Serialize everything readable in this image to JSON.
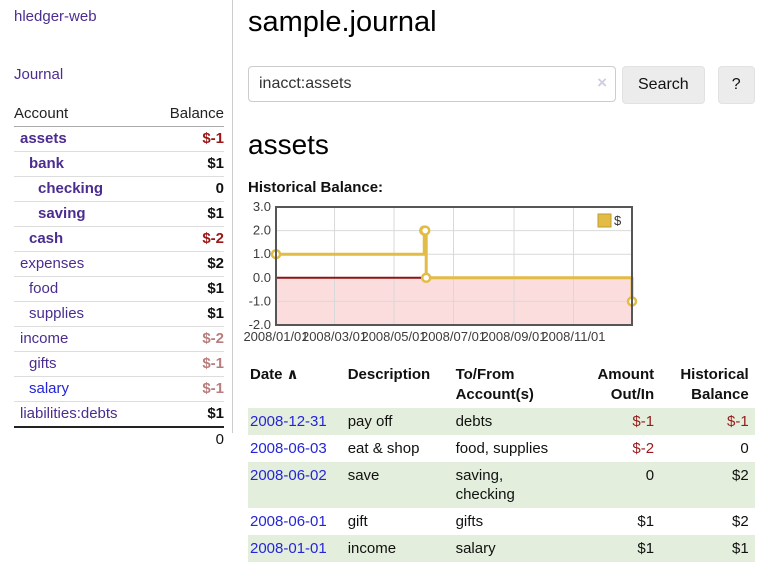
{
  "app": {
    "title": "hledger-web",
    "nav_journal": "Journal"
  },
  "sidebar": {
    "accounts": {
      "headers": [
        "Account",
        "Balance"
      ],
      "rows": [
        {
          "name": "assets",
          "indent": 1,
          "bold": true,
          "balance": "$-1",
          "tone": "neg-strong"
        },
        {
          "name": "bank",
          "indent": 2,
          "bold": true,
          "balance": "$1",
          "tone": "pos"
        },
        {
          "name": "checking",
          "indent": 3,
          "bold": true,
          "balance": "0",
          "tone": "pos"
        },
        {
          "name": "saving",
          "indent": 3,
          "bold": true,
          "balance": "$1",
          "tone": "pos"
        },
        {
          "name": "cash",
          "indent": 2,
          "bold": true,
          "balance": "$-2",
          "tone": "neg-strong"
        },
        {
          "name": "expenses",
          "indent": 1,
          "bold": false,
          "balance": "$2",
          "tone": "pos"
        },
        {
          "name": "food",
          "indent": 2,
          "bold": false,
          "balance": "$1",
          "tone": "pos"
        },
        {
          "name": "supplies",
          "indent": 2,
          "bold": false,
          "balance": "$1",
          "tone": "pos"
        },
        {
          "name": "income",
          "indent": 1,
          "bold": false,
          "balance": "$-2",
          "tone": "neg-muted"
        },
        {
          "name": "gifts",
          "indent": 2,
          "bold": false,
          "balance": "$-1",
          "tone": "neg-muted"
        },
        {
          "name": "salary",
          "indent": 2,
          "bold": false,
          "balance": "$-1",
          "tone": "neg-muted",
          "link_color": "blue"
        },
        {
          "name": "liabilities:debts",
          "indent": 1,
          "bold": false,
          "balance": "$1",
          "tone": "pos"
        }
      ],
      "total": "0"
    }
  },
  "main": {
    "page_title": "sample.journal",
    "search": {
      "value": "inacct:assets",
      "clear_icon": "×",
      "button_label": "Search",
      "help_label": "?"
    },
    "account_heading": "assets",
    "chart_label": "Historical Balance:"
  },
  "chart_data": {
    "type": "line",
    "title": "Historical Balance",
    "steps": true,
    "xlim": [
      "2008/01/01",
      "2008/12/31"
    ],
    "ylim": [
      -2,
      3
    ],
    "x_ticks": [
      "2008/01/01",
      "2008/03/01",
      "2008/05/01",
      "2008/07/01",
      "2008/09/01",
      "2008/11/01"
    ],
    "y_ticks": [
      "3.0",
      "2.0",
      "1.0",
      "0.0",
      "-1.0",
      "-2.0"
    ],
    "series": [
      {
        "name": "$",
        "color": "#e2bc44",
        "points": [
          [
            "2008/01/01",
            1
          ],
          [
            "2008/06/01",
            2
          ],
          [
            "2008/06/02",
            2
          ],
          [
            "2008/06/03",
            0
          ],
          [
            "2008/12/31",
            -1
          ]
        ]
      }
    ],
    "legend": {
      "label": "$",
      "position": "top-right"
    },
    "colors": {
      "negative_region": "#fbdddd",
      "zero_line": "#8f1414",
      "grid": "#d9d9d9",
      "border": "#565656",
      "legend_border": "#bf9c33",
      "tick_text": "#3c3c3c"
    }
  },
  "transactions": {
    "headers": {
      "date": "Date",
      "sort_icon": "∧",
      "description": "Description",
      "accounts_line1": "To/From",
      "accounts_line2": "Account(s)",
      "amount_line1": "Amount",
      "amount_line2": "Out/In",
      "balance_line1": "Historical",
      "balance_line2": "Balance"
    },
    "rows": [
      {
        "date": "2008-12-31",
        "description": "pay off",
        "accounts": "debts",
        "amount": "$-1",
        "amount_neg": true,
        "balance": "$-1",
        "balance_neg": true
      },
      {
        "date": "2008-06-03",
        "description": "eat & shop",
        "accounts": "food, supplies",
        "amount": "$-2",
        "amount_neg": true,
        "balance": "0",
        "balance_neg": false
      },
      {
        "date": "2008-06-02",
        "description": "save",
        "accounts": "saving, checking",
        "amount": "0",
        "amount_neg": false,
        "balance": "$2",
        "balance_neg": false
      },
      {
        "date": "2008-06-01",
        "description": "gift",
        "accounts": "gifts",
        "amount": "$1",
        "amount_neg": false,
        "balance": "$2",
        "balance_neg": false
      },
      {
        "date": "2008-01-01",
        "description": "income",
        "accounts": "salary",
        "amount": "$1",
        "amount_neg": false,
        "balance": "$1",
        "balance_neg": false
      }
    ]
  }
}
